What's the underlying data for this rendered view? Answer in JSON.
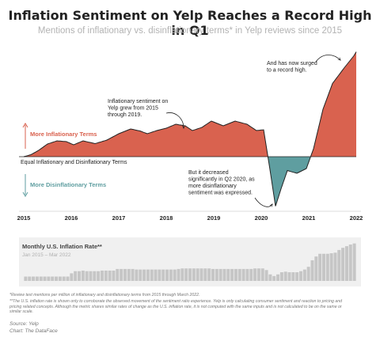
{
  "title": "Inflation Sentiment on Yelp Reaches a Record High in Q1",
  "subtitle": "Mentions of inflationary vs. disinflationary terms* in Yelp reviews since 2015",
  "colors": {
    "inflationary": "#d9624f",
    "disinflationary": "#5f9ea0",
    "bars": "#c6c6c6",
    "panel": "#f0f0f0"
  },
  "main": {
    "more_inflationary_label": "More Inflationary Terms",
    "more_disinflationary_label": "More Disinflationary Terms",
    "baseline_label": "Equal Inflationary and Disinflationary Terms",
    "annotations": {
      "grew": "Inflationary sentiment on\nYelp grew from 2015\nthrough 2019.",
      "decreased": "But it decreased\nsignificantly in Q2 2020, as\nmore disinflationary\nsentiment was expressed.",
      "surged": "And has now surged\nto a record high."
    }
  },
  "inset": {
    "title": "Monthly U.S. Inflation Rate**",
    "subtitle": "Jan 2015 – Mar 2022"
  },
  "footnotes": {
    "note1": "*Review text mentions per million of inflationary and disinflationary terms from 2015 through March 2022.",
    "note2": "**The U.S. inflation rate is shown only to corroborate the observed movement of the sentiment ratio experience. Yelp is only calculating consumer sentiment and reaction to pricing and pricing related concepts. Although the metric shares similar rates of change as the U.S. inflation rate, it is not computed with the same inputs and is not calculated to be on the same or similar scale."
  },
  "source": "Source: Yelp",
  "credit": "Chart: The DataFace",
  "chart_data": [
    {
      "type": "area",
      "title": "Inflation Sentiment on Yelp Reaches a Record High in Q1",
      "subtitle": "Mentions of inflationary vs. disinflationary terms* in Yelp reviews since 2015",
      "x_ticks": [
        "2015",
        "2016",
        "2017",
        "2018",
        "2019",
        "2020",
        "2021",
        "2022"
      ],
      "baseline": 0,
      "ylim": [
        -1.4,
        2.85
      ],
      "series": [
        {
          "values": [
            [
              2015.0,
              0.0
            ],
            [
              2015.15,
              0.05
            ],
            [
              2015.3,
              0.15
            ],
            [
              2015.5,
              0.32
            ],
            [
              2015.7,
              0.4
            ],
            [
              2015.9,
              0.38
            ],
            [
              2016.05,
              0.3
            ],
            [
              2016.25,
              0.4
            ],
            [
              2016.5,
              0.33
            ],
            [
              2016.75,
              0.42
            ],
            [
              2017.0,
              0.58
            ],
            [
              2017.25,
              0.7
            ],
            [
              2017.45,
              0.65
            ],
            [
              2017.6,
              0.58
            ],
            [
              2017.8,
              0.66
            ],
            [
              2018.0,
              0.72
            ],
            [
              2018.2,
              0.82
            ],
            [
              2018.4,
              0.78
            ],
            [
              2018.55,
              0.66
            ],
            [
              2018.75,
              0.74
            ],
            [
              2018.95,
              0.9
            ],
            [
              2019.2,
              0.78
            ],
            [
              2019.45,
              0.9
            ],
            [
              2019.7,
              0.82
            ],
            [
              2019.9,
              0.66
            ],
            [
              2020.05,
              0.68
            ],
            [
              2020.18,
              -0.3
            ],
            [
              2020.3,
              -1.25
            ],
            [
              2020.42,
              -0.8
            ],
            [
              2020.55,
              -0.35
            ],
            [
              2020.75,
              -0.42
            ],
            [
              2020.95,
              -0.3
            ],
            [
              2021.1,
              0.2
            ],
            [
              2021.3,
              1.2
            ],
            [
              2021.5,
              1.85
            ],
            [
              2021.75,
              2.25
            ],
            [
              2021.95,
              2.55
            ],
            [
              2022.0,
              2.65
            ]
          ]
        }
      ]
    },
    {
      "type": "bar",
      "title": "Monthly U.S. Inflation Rate**",
      "subtitle": "Jan 2015 – Mar 2022",
      "x_range": [
        "Jan 2015",
        "Mar 2022"
      ],
      "values": [
        0.8,
        0.8,
        0.8,
        0.8,
        0.8,
        0.8,
        0.8,
        0.8,
        0.8,
        0.8,
        0.8,
        0.8,
        1.4,
        1.8,
        1.8,
        1.9,
        1.8,
        1.8,
        1.8,
        1.8,
        1.9,
        1.9,
        1.9,
        1.9,
        2.2,
        2.2,
        2.2,
        2.2,
        2.2,
        2.1,
        2.1,
        2.1,
        2.1,
        2.1,
        2.1,
        2.1,
        2.1,
        2.1,
        2.1,
        2.1,
        2.2,
        2.3,
        2.3,
        2.3,
        2.3,
        2.3,
        2.3,
        2.3,
        2.3,
        2.2,
        2.2,
        2.2,
        2.2,
        2.2,
        2.2,
        2.2,
        2.2,
        2.2,
        2.2,
        2.2,
        2.3,
        2.3,
        2.3,
        2.0,
        1.2,
        0.9,
        1.2,
        1.6,
        1.7,
        1.6,
        1.6,
        1.6,
        1.8,
        2.1,
        2.6,
        3.8,
        4.5,
        5.0,
        5.0,
        5.0,
        5.1,
        5.2,
        5.7,
        6.1,
        6.4,
        6.7,
        6.9
      ]
    }
  ]
}
